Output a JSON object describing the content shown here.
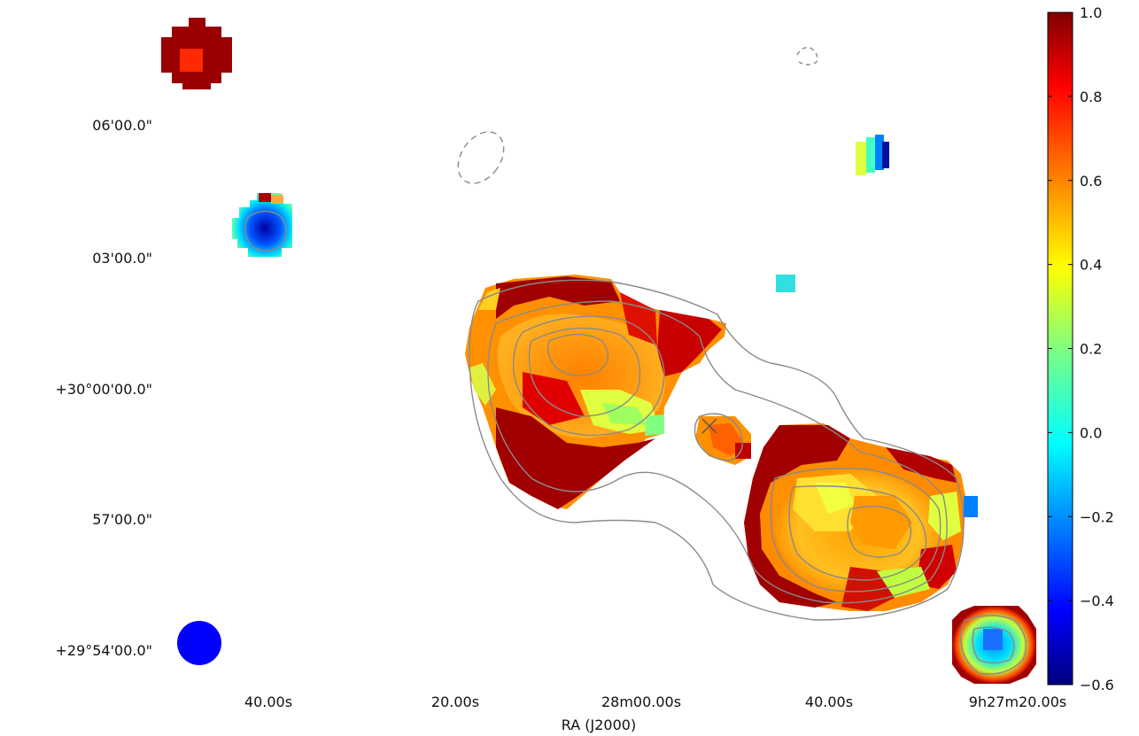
{
  "chart_data": {
    "type": "heatmap",
    "title": "",
    "xlabel": "RA (J2000)",
    "ylabel": "",
    "x_ticks": [
      "40.00s",
      "20.00s",
      "28m00.00s",
      "40.00s",
      "9h27m20.00s"
    ],
    "y_ticks": [
      "06'00.0\"",
      "03'00.0\"",
      "+30°00'00.0\"",
      "57'00.0\"",
      "+29°54'00.0\""
    ],
    "colorbar": {
      "ticks": [
        "1.0",
        "0.8",
        "0.6",
        "0.4",
        "0.2",
        "0.0",
        "−0.2",
        "−0.4",
        "−0.6"
      ],
      "range": [
        -0.6,
        1.0
      ],
      "colormap": "jet"
    },
    "features": [
      {
        "name": "north-lobe",
        "value_range": [
          0.3,
          1.0
        ]
      },
      {
        "name": "south-lobe",
        "value_range": [
          0.3,
          1.0
        ]
      },
      {
        "name": "core",
        "value": 0.7
      },
      {
        "name": "background-source-nw",
        "value": 1.0
      },
      {
        "name": "background-source-w",
        "value": -0.4
      },
      {
        "name": "background-source-se",
        "value": -0.1
      }
    ],
    "contours": "grey solid and dashed",
    "beam_color": "#0000ff"
  }
}
